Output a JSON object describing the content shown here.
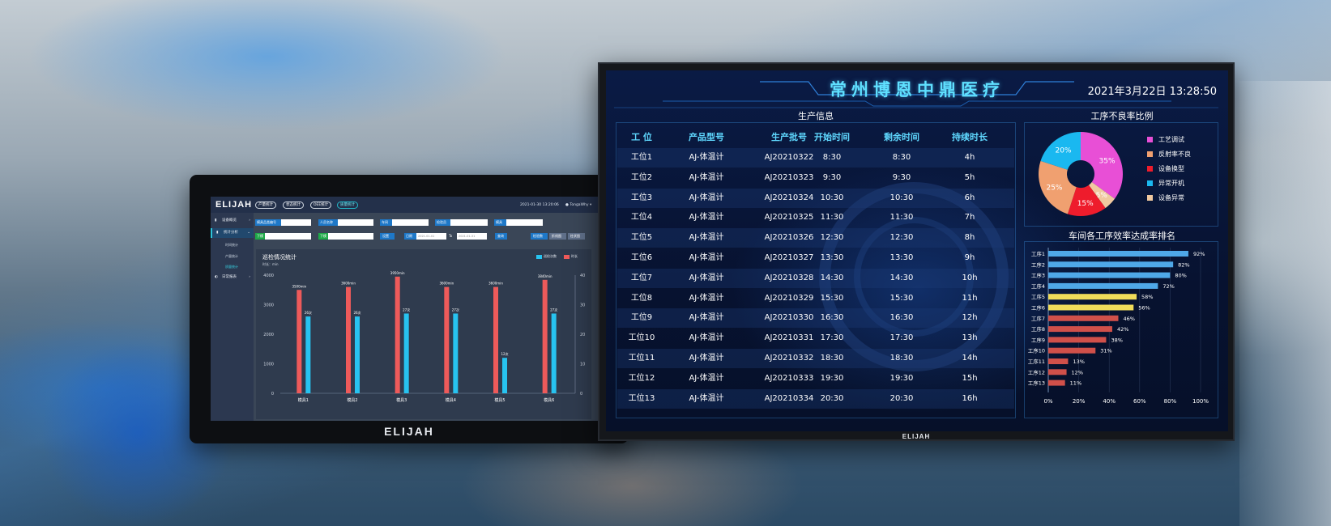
{
  "small_monitor": {
    "brand": "ELIJAH",
    "logo": "ELIJAH",
    "nav_tabs": [
      "产量统计",
      "状态统计",
      "OEE统计",
      "质量统计"
    ],
    "active_tab": 3,
    "datetime": "2021-01-30  13:20:06",
    "user": "TongaWhy",
    "sidebar": [
      {
        "label": "设备概览",
        "icon": "gauge-icon"
      },
      {
        "label": "统计分析",
        "icon": "chart-icon",
        "active": true
      },
      {
        "label": "日常报表",
        "icon": "report-icon"
      }
    ],
    "sidebar_sub": [
      "时间统计",
      "产量统计",
      "质量统计"
    ],
    "form": {
      "row1": [
        "模具品类编号",
        "人员名称",
        "车间",
        "检验员",
        "模具"
      ],
      "row2": [
        "下模",
        "下模",
        "设置",
        "日期",
        "To",
        "查询"
      ],
      "date_from": "2021-01-01",
      "date_to": "2021-01-31",
      "right_buttons": [
        "检验数",
        "折线图",
        "柱状图"
      ]
    },
    "chart_title": "巡检情况统计",
    "chart_unit": "时长：min",
    "legend": [
      "巡检次数",
      "时长"
    ],
    "colors": {
      "count": "#27c3f0",
      "duration": "#ee5a5a"
    }
  },
  "chart_data": {
    "type": "bar",
    "title": "巡检情况统计",
    "categories": [
      "模具1",
      "模具2",
      "模具3",
      "模具4",
      "模具5",
      "模具6"
    ],
    "series": [
      {
        "name": "时长",
        "axis": "left",
        "values": [
          3500,
          3600,
          3950,
          3600,
          3600,
          3840
        ],
        "labels": [
          "3500min",
          "3600min",
          "3950min",
          "3600min",
          "3600min",
          "3840min"
        ]
      },
      {
        "name": "巡检次数",
        "axis": "right",
        "values": [
          26,
          26,
          27,
          27,
          12,
          27
        ],
        "labels": [
          "26次",
          "26次",
          "27次",
          "27次",
          "12次",
          "27次"
        ]
      }
    ],
    "y_left": {
      "ticks": [
        0,
        1000,
        2000,
        3000,
        4000
      ],
      "range": [
        0,
        4000
      ]
    },
    "y_right": {
      "ticks": [
        0,
        10,
        20,
        30,
        40
      ],
      "range": [
        0,
        40
      ]
    }
  },
  "big_monitor": {
    "brand": "ELIJAH",
    "title": "常州博恩中鼎医疗",
    "datetime": "2021年3月22日 13:28:50",
    "production": {
      "title": "生产信息",
      "headers": [
        "工 位",
        "产品型号",
        "生产批号",
        "开始时间",
        "剩余时间",
        "持续时长"
      ],
      "rows": [
        [
          "工位1",
          "AJ-体温计",
          "AJ20210322",
          "8:30",
          "8:30",
          "4h"
        ],
        [
          "工位2",
          "AJ-体温计",
          "AJ20210323",
          "9:30",
          "9:30",
          "5h"
        ],
        [
          "工位3",
          "AJ-体温计",
          "AJ20210324",
          "10:30",
          "10:30",
          "6h"
        ],
        [
          "工位4",
          "AJ-体温计",
          "AJ20210325",
          "11:30",
          "11:30",
          "7h"
        ],
        [
          "工位5",
          "AJ-体温计",
          "AJ20210326",
          "12:30",
          "12:30",
          "8h"
        ],
        [
          "工位6",
          "AJ-体温计",
          "AJ20210327",
          "13:30",
          "13:30",
          "9h"
        ],
        [
          "工位7",
          "AJ-体温计",
          "AJ20210328",
          "14:30",
          "14:30",
          "10h"
        ],
        [
          "工位8",
          "AJ-体温计",
          "AJ20210329",
          "15:30",
          "15:30",
          "11h"
        ],
        [
          "工位9",
          "AJ-体温计",
          "AJ20210330",
          "16:30",
          "16:30",
          "12h"
        ],
        [
          "工位10",
          "AJ-体温计",
          "AJ20210331",
          "17:30",
          "17:30",
          "13h"
        ],
        [
          "工位11",
          "AJ-体温计",
          "AJ20210332",
          "18:30",
          "18:30",
          "14h"
        ],
        [
          "工位12",
          "AJ-体温计",
          "AJ20210333",
          "19:30",
          "19:30",
          "15h"
        ],
        [
          "工位13",
          "AJ-体温计",
          "AJ20210334",
          "20:30",
          "20:30",
          "16h"
        ]
      ]
    },
    "defect": {
      "title": "工序不良率比例",
      "slices": [
        {
          "label": "工艺调试",
          "value": 35,
          "color": "#e84fd6"
        },
        {
          "label": "反射率不良",
          "value": 5,
          "color": "#f0c9a0"
        },
        {
          "label": "设备换型",
          "value": 15,
          "color": "#ee1c2c"
        },
        {
          "label": "异常开机",
          "value": 25,
          "color": "#f0a070"
        },
        {
          "label": "设备异常",
          "value": 20,
          "color": "#1ab8f0"
        }
      ],
      "legend": [
        {
          "label": "工艺调试",
          "color": "#e84fd6"
        },
        {
          "label": "反射率不良",
          "color": "#f0a070"
        },
        {
          "label": "设备换型",
          "color": "#ee1c2c"
        },
        {
          "label": "异常开机",
          "color": "#1ab8f0"
        },
        {
          "label": "设备异常",
          "color": "#f0c9a0"
        }
      ]
    },
    "efficiency": {
      "title": "车间各工序效率达成率排名",
      "items": [
        {
          "label": "工序1",
          "value": 92,
          "color": "#4fa8e8"
        },
        {
          "label": "工序2",
          "value": 82,
          "color": "#4fa8e8"
        },
        {
          "label": "工序3",
          "value": 80,
          "color": "#4fa8e8"
        },
        {
          "label": "工序4",
          "value": 72,
          "color": "#4fa8e8"
        },
        {
          "label": "工序5",
          "value": 58,
          "color": "#f0dc5a"
        },
        {
          "label": "工序6",
          "value": 56,
          "color": "#f0dc5a"
        },
        {
          "label": "工序7",
          "value": 46,
          "color": "#d0504a"
        },
        {
          "label": "工序8",
          "value": 42,
          "color": "#d0504a"
        },
        {
          "label": "工序9",
          "value": 38,
          "color": "#d0504a"
        },
        {
          "label": "工序10",
          "value": 31,
          "color": "#d0504a"
        },
        {
          "label": "工序11",
          "value": 13,
          "color": "#d0504a"
        },
        {
          "label": "工序12",
          "value": 12,
          "color": "#d0504a"
        },
        {
          "label": "工序13",
          "value": 11,
          "color": "#d0504a"
        }
      ],
      "x_ticks": [
        "0%",
        "20%",
        "40%",
        "60%",
        "80%",
        "100%"
      ]
    }
  }
}
